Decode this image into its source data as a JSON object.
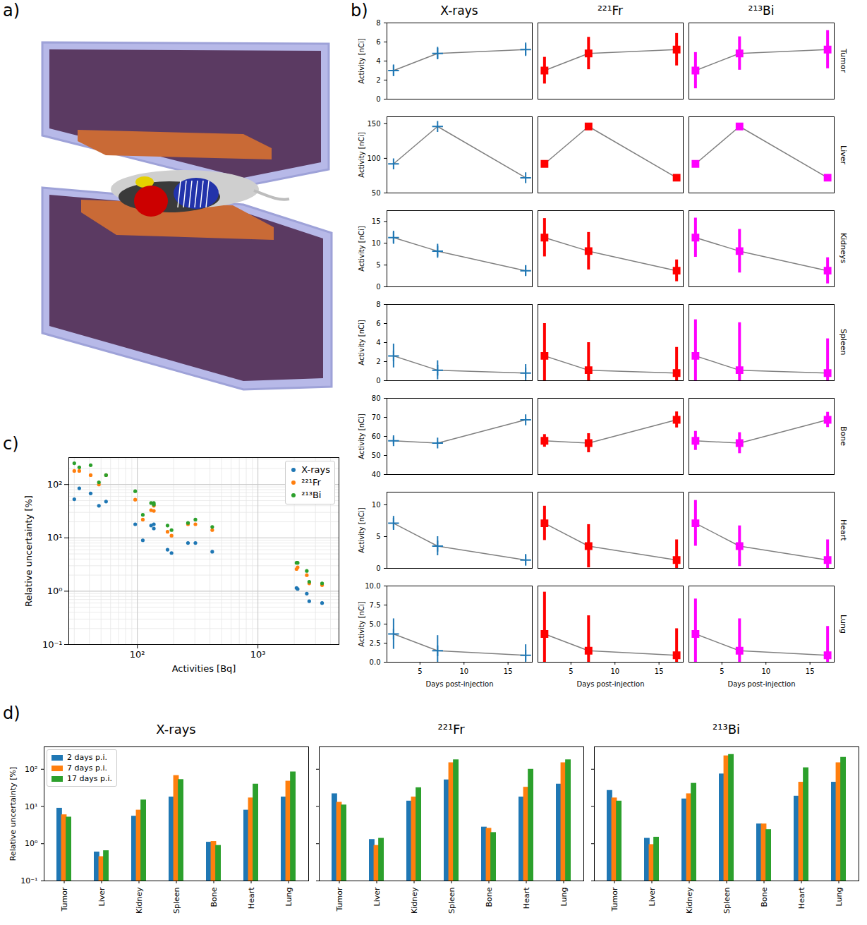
{
  "chart_data": [
    {
      "panel_label": "a)",
      "type": "image"
    },
    {
      "panel_label": "b)",
      "type": "line",
      "columns": [
        {
          "title": "X-rays",
          "color": "#1f77b4",
          "marker": "plus"
        },
        {
          "title": "²²¹Fr",
          "color": "#ff0000",
          "marker": "square"
        },
        {
          "title": "²¹³Bi",
          "color": "#ff00ff",
          "marker": "square"
        }
      ],
      "x": [
        2,
        7,
        17
      ],
      "xlim": [
        1.25,
        17.75
      ],
      "xticks": [
        5,
        10,
        15
      ],
      "xlabel": "Days post-injection",
      "ylabel": "Activity [nCi]",
      "rows": [
        {
          "name": "Tumor",
          "values": [
            3.0,
            4.8,
            5.2
          ],
          "errors": [
            [
              0.6,
              0.65,
              0.7
            ],
            [
              1.4,
              1.7,
              1.7
            ],
            [
              1.9,
              1.75,
              2.0
            ]
          ],
          "ylim": [
            0,
            8
          ],
          "yticks": [
            0,
            2,
            4,
            6,
            8
          ]
        },
        {
          "name": "Liver",
          "values": [
            92,
            146,
            72
          ],
          "errors": [
            [
              0.5,
              0.7,
              0.5
            ],
            [
              1.2,
              1.3,
              1.0
            ],
            [
              1.3,
              1.4,
              1.1
            ]
          ],
          "ylim": [
            50,
            160
          ],
          "yticks": [
            50,
            100,
            150
          ]
        },
        {
          "name": "Kidneys",
          "values": [
            11.3,
            8.2,
            3.7
          ],
          "errors": [
            [
              1.5,
              1.6,
              1.2
            ],
            [
              4.4,
              4.3,
              2.5
            ],
            [
              4.5,
              5.0,
              3.0
            ]
          ],
          "ylim": [
            0,
            17.5
          ],
          "yticks": [
            0,
            5,
            10,
            15
          ]
        },
        {
          "name": "Spleen",
          "values": [
            2.6,
            1.1,
            0.8
          ],
          "errors": [
            [
              1.25,
              1.0,
              0.9
            ],
            [
              3.4,
              2.9,
              2.7
            ],
            [
              3.8,
              5.0,
              3.6
            ]
          ],
          "ylim": [
            0,
            8
          ],
          "yticks": [
            0,
            2,
            4,
            6,
            8
          ]
        },
        {
          "name": "Bone",
          "values": [
            57.7,
            56.5,
            68.7
          ],
          "errors": [
            [
              1.8,
              0.6,
              0.6
            ],
            [
              3.3,
              5.0,
              4.2
            ],
            [
              5.0,
              5.5,
              4.0
            ]
          ],
          "ylim": [
            40,
            80
          ],
          "yticks": [
            40,
            50,
            60,
            70,
            80
          ]
        },
        {
          "name": "Heart",
          "values": [
            7.1,
            3.5,
            1.3
          ],
          "errors": [
            [
              1.1,
              1.5,
              0.9
            ],
            [
              2.7,
              3.4,
              3.2
            ],
            [
              3.6,
              3.2,
              3.2
            ]
          ],
          "ylim": [
            0,
            12
          ],
          "yticks": [
            0,
            5,
            10
          ]
        },
        {
          "name": "Lung",
          "values": [
            3.7,
            1.5,
            0.9
          ],
          "errors": [
            [
              2.0,
              2.0,
              1.4
            ],
            [
              5.5,
              4.6,
              3.5
            ],
            [
              4.6,
              4.2,
              3.8
            ]
          ],
          "ylim": [
            0,
            10
          ],
          "yticks": [
            {
              "value": 0,
              "label": "0.0"
            },
            2.5,
            {
              "value": 5,
              "label": "5.0"
            },
            7.5,
            {
              "value": 10,
              "label": "10.0"
            }
          ]
        }
      ]
    },
    {
      "panel_label": "c)",
      "type": "scatter",
      "log": true,
      "grid": true,
      "legend": "upper right",
      "xlabel": "Activities [Bq]",
      "ylabel": "Relative uncertainty [%]",
      "xlim": [
        27,
        4700
      ],
      "ylim": [
        0.1,
        320
      ],
      "xticks": [
        {
          "value": 100,
          "label": "10²"
        },
        {
          "value": 1000,
          "label": "10³"
        }
      ],
      "yticks": [
        {
          "value": 0.1,
          "label": "10⁻¹"
        },
        {
          "value": 1,
          "label": "10⁰"
        },
        {
          "value": 10,
          "label": "10¹"
        },
        {
          "value": 100,
          "label": "10²"
        }
      ],
      "x": [
        30,
        33,
        41,
        48,
        55,
        96,
        111,
        130,
        137,
        137,
        178,
        192,
        263,
        303,
        418,
        2090,
        2135,
        2542,
        2664,
        3404
      ],
      "series": [
        {
          "name": "X-rays",
          "color": "#1f77b4",
          "values": [
            53,
            85,
            68,
            40,
            48,
            18,
            9,
            17,
            18,
            15,
            6,
            5.2,
            8,
            8,
            5.5,
            1.15,
            1.1,
            0.9,
            0.65,
            0.6
          ]
        },
        {
          "name": "²²¹Fr",
          "color": "#ff7f0e",
          "values": [
            180,
            180,
            150,
            100,
            150,
            52,
            22,
            33,
            40,
            32,
            13,
            11,
            18,
            18,
            14,
            2.6,
            2.8,
            2.0,
            1.4,
            1.3
          ]
        },
        {
          "name": "²¹³Bi",
          "color": "#2ca02c",
          "values": [
            250,
            210,
            230,
            110,
            150,
            75,
            27,
            45,
            45,
            42,
            17,
            14,
            19,
            22,
            16,
            3.4,
            3.4,
            2.4,
            1.5,
            1.4
          ]
        }
      ]
    },
    {
      "panel_label": "d)",
      "type": "bar",
      "log": "y",
      "legend": "upper left",
      "ylabel": "Relative uncertainty [%]",
      "ylim": [
        0.1,
        400
      ],
      "yticks": [
        {
          "value": 0.1,
          "label": "10⁻¹"
        },
        {
          "value": 1,
          "label": "10⁰"
        },
        {
          "value": 10,
          "label": "10¹"
        },
        {
          "value": 100,
          "label": "10²"
        }
      ],
      "categories": [
        "Tumor",
        "Liver",
        "Kidney",
        "Spleen",
        "Bone",
        "Heart",
        "Lung"
      ],
      "panels": [
        {
          "title": "X-rays",
          "series": [
            {
              "name": "2 days p.i.",
              "color": "#1f77b4",
              "values": [
                9,
                0.6,
                5.5,
                18,
                1.1,
                8,
                18
              ]
            },
            {
              "name": "7 days p.i.",
              "color": "#ff7f0e",
              "values": [
                6,
                0.45,
                8,
                68,
                1.15,
                17,
                48
              ]
            },
            {
              "name": "17 days p.i.",
              "color": "#2ca02c",
              "values": [
                5.2,
                0.65,
                15,
                53,
                0.9,
                40,
                85
              ]
            }
          ]
        },
        {
          "title": "²²¹Fr",
          "series": [
            {
              "name": "2 days p.i.",
              "color": "#1f77b4",
              "values": [
                22,
                1.3,
                14,
                52,
                2.8,
                18,
                40
              ]
            },
            {
              "name": "7 days p.i.",
              "color": "#ff7f0e",
              "values": [
                13,
                0.9,
                18,
                150,
                2.6,
                33,
                150
              ]
            },
            {
              "name": "17 days p.i.",
              "color": "#2ca02c",
              "values": [
                11,
                1.4,
                32,
                180,
                2.0,
                100,
                180
              ]
            }
          ]
        },
        {
          "title": "²¹³Bi",
          "series": [
            {
              "name": "2 days p.i.",
              "color": "#1f77b4",
              "values": [
                27,
                1.4,
                16,
                75,
                3.4,
                19,
                45
              ]
            },
            {
              "name": "7 days p.i.",
              "color": "#ff7f0e",
              "values": [
                17,
                0.95,
                22,
                230,
                3.4,
                45,
                150
              ]
            },
            {
              "name": "17 days p.i.",
              "color": "#2ca02c",
              "values": [
                14,
                1.5,
                42,
                250,
                2.4,
                110,
                210
              ]
            }
          ]
        }
      ]
    }
  ]
}
